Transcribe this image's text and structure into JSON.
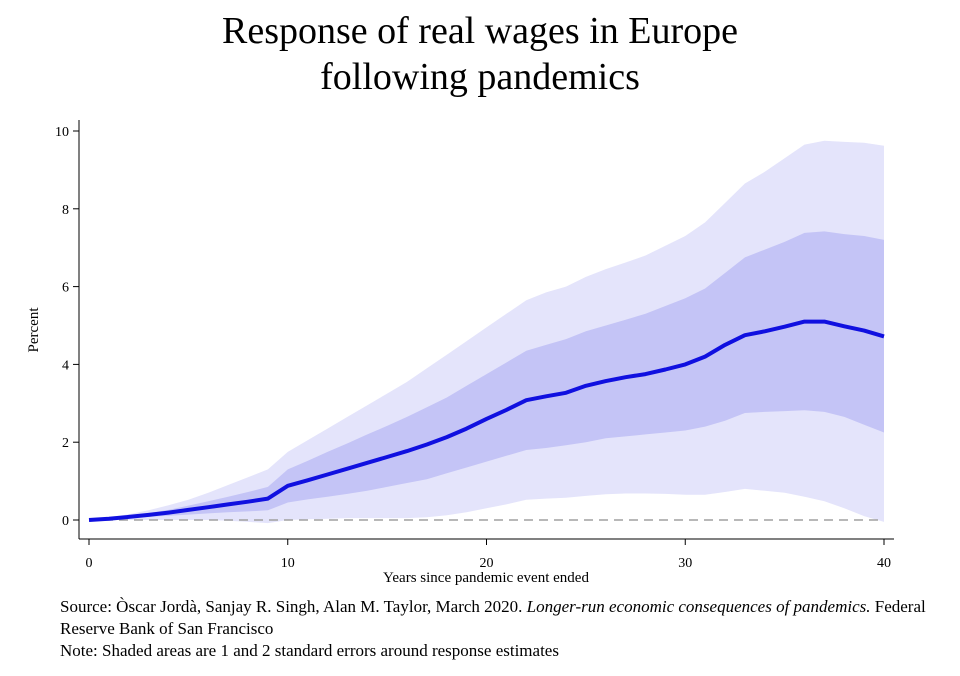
{
  "chart_data": {
    "type": "area",
    "title_line1": "Response of real wages in Europe",
    "title_line2": "following pandemics",
    "xlabel": "Years since pandemic event ended",
    "ylabel": "Percent",
    "xlim": [
      0,
      40
    ],
    "ylim": [
      -0.5,
      10.2
    ],
    "xticks": [
      0,
      10,
      20,
      30,
      40
    ],
    "xtick_labels": [
      "0",
      "10",
      "20",
      "30",
      "40"
    ],
    "yticks": [
      0,
      2,
      4,
      6,
      8,
      10
    ],
    "ytick_labels": [
      "0",
      "2",
      "4",
      "6",
      "8",
      "10"
    ],
    "grid": false,
    "colors": {
      "line": "#1010e0",
      "band_1se": "#c4c4f6",
      "band_2se": "#e4e4fb",
      "zero_line": "#a0a0a0"
    },
    "x": [
      0,
      1,
      2,
      3,
      4,
      5,
      6,
      7,
      8,
      9,
      10,
      11,
      12,
      13,
      14,
      15,
      16,
      17,
      18,
      19,
      20,
      21,
      22,
      23,
      24,
      25,
      26,
      27,
      28,
      29,
      30,
      31,
      32,
      33,
      34,
      35,
      36,
      37,
      38,
      39,
      40
    ],
    "series": [
      {
        "values": [
          0,
          0.03,
          0.08,
          0.13,
          0.19,
          0.26,
          0.33,
          0.4,
          0.47,
          0.55,
          0.88,
          1.02,
          1.17,
          1.32,
          1.47,
          1.62,
          1.77,
          1.94,
          2.13,
          2.35,
          2.6,
          2.83,
          3.08,
          3.18,
          3.27,
          3.45,
          3.57,
          3.67,
          3.75,
          3.87,
          4.0,
          4.2,
          4.5,
          4.75,
          4.85,
          4.97,
          5.1,
          5.1,
          4.98,
          4.87,
          4.72
        ]
      }
    ],
    "bands": [
      {
        "lower": [
          0,
          0.02,
          0.05,
          0.08,
          0.11,
          0.14,
          0.17,
          0.2,
          0.22,
          0.25,
          0.45,
          0.53,
          0.6,
          0.67,
          0.75,
          0.85,
          0.95,
          1.05,
          1.2,
          1.35,
          1.5,
          1.65,
          1.8,
          1.85,
          1.92,
          2.0,
          2.1,
          2.15,
          2.2,
          2.25,
          2.3,
          2.4,
          2.55,
          2.75,
          2.78,
          2.8,
          2.82,
          2.78,
          2.65,
          2.45,
          2.25
        ],
        "upper": [
          0,
          0.05,
          0.11,
          0.18,
          0.26,
          0.37,
          0.48,
          0.6,
          0.72,
          0.85,
          1.3,
          1.52,
          1.75,
          1.97,
          2.2,
          2.42,
          2.65,
          2.9,
          3.15,
          3.45,
          3.75,
          4.05,
          4.35,
          4.5,
          4.65,
          4.85,
          5.0,
          5.15,
          5.3,
          5.5,
          5.7,
          5.95,
          6.35,
          6.75,
          6.95,
          7.15,
          7.38,
          7.42,
          7.35,
          7.3,
          7.2
        ]
      },
      {
        "lower": [
          0,
          0,
          0,
          0,
          0,
          0,
          0,
          -0.02,
          -0.05,
          -0.08,
          0,
          0.02,
          0.03,
          0.05,
          0.05,
          0.05,
          0.05,
          0.07,
          0.12,
          0.2,
          0.3,
          0.4,
          0.52,
          0.55,
          0.57,
          0.62,
          0.66,
          0.68,
          0.68,
          0.67,
          0.65,
          0.65,
          0.72,
          0.8,
          0.75,
          0.7,
          0.6,
          0.48,
          0.3,
          0.1,
          -0.05
        ],
        "upper": [
          0,
          0.07,
          0.15,
          0.25,
          0.38,
          0.52,
          0.7,
          0.9,
          1.1,
          1.3,
          1.75,
          2.05,
          2.35,
          2.65,
          2.95,
          3.25,
          3.55,
          3.9,
          4.25,
          4.6,
          4.95,
          5.3,
          5.65,
          5.85,
          6.0,
          6.25,
          6.45,
          6.62,
          6.8,
          7.05,
          7.3,
          7.65,
          8.15,
          8.65,
          8.95,
          9.3,
          9.65,
          9.75,
          9.72,
          9.7,
          9.62
        ]
      }
    ]
  },
  "footer": {
    "source_prefix": "Source: Òscar Jordà, Sanjay R. Singh, Alan M. Taylor, March 2020.  ",
    "source_title": "Longer-run economic consequences of pandemics.",
    "source_suffix": " Federal Reserve Bank of San Francisco",
    "note": "Note: Shaded areas are 1 and 2 standard errors around response estimates"
  }
}
